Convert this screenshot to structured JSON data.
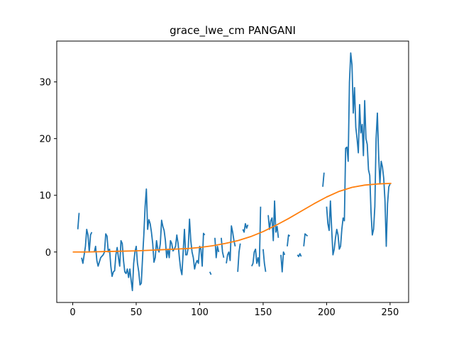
{
  "chart_data": {
    "type": "line",
    "title": "grace_lwe_cm PANGANI",
    "xlim": [
      -12.6,
      264.6
    ],
    "ylim": [
      -8.9,
      37.2
    ],
    "xticks": [
      0,
      50,
      100,
      150,
      200,
      250
    ],
    "yticks": [
      0,
      10,
      20,
      30
    ],
    "series": [
      {
        "color": "#1f77b4",
        "x": [
          4,
          5,
          6,
          7,
          8,
          10,
          11,
          12,
          13,
          14,
          15,
          16,
          17,
          18,
          19,
          20,
          22,
          24,
          25,
          26,
          27,
          28,
          29,
          30,
          31,
          32,
          33,
          34,
          35,
          36,
          37,
          38,
          39,
          40,
          41,
          42,
          43,
          44,
          45,
          46,
          47,
          48,
          49,
          50,
          51,
          52,
          53,
          54,
          55,
          56,
          57,
          58,
          59,
          60,
          61,
          62,
          63,
          64,
          65,
          66,
          67,
          68,
          69,
          70,
          71,
          72,
          73,
          74,
          75,
          76,
          77,
          78,
          79,
          80,
          81,
          82,
          83,
          84,
          85,
          86,
          87,
          88,
          89,
          90,
          91,
          92,
          93,
          94,
          95,
          96,
          97,
          98,
          99,
          100,
          101,
          102,
          103,
          104,
          106,
          108,
          109,
          110,
          112,
          113,
          114,
          115,
          116,
          117,
          118,
          119,
          120,
          121,
          122,
          123,
          124,
          125,
          126,
          127,
          128,
          129,
          130,
          131,
          132,
          133,
          134,
          135,
          136,
          137,
          138,
          139,
          141,
          142,
          143,
          144,
          145,
          146,
          147,
          148,
          149,
          150,
          151,
          152,
          153,
          154,
          155,
          156,
          157,
          158,
          159,
          160,
          161,
          162,
          163,
          164,
          165,
          166,
          167,
          168,
          169,
          170,
          171,
          176,
          177,
          178,
          179,
          180,
          181,
          182,
          183,
          184,
          185,
          190,
          197,
          198,
          199,
          200,
          201,
          202,
          203,
          204,
          205,
          206,
          207,
          208,
          209,
          210,
          211,
          212,
          213,
          214,
          215,
          216,
          217,
          218,
          219,
          220,
          221,
          222,
          223,
          224,
          225,
          226,
          227,
          228,
          229,
          230,
          231,
          232,
          233,
          234,
          235,
          236,
          237,
          238,
          239,
          240,
          241,
          242,
          243,
          244,
          245,
          246,
          247,
          248,
          249,
          250
        ],
        "values": [
          4,
          6.9,
          null,
          -1,
          -2,
          1,
          4,
          3,
          0,
          3,
          3.5,
          null,
          0,
          1,
          -1.5,
          -2.5,
          -1,
          -0.5,
          0,
          3.2,
          2.8,
          0,
          0.5,
          -2.5,
          -4.3,
          -3.5,
          -3.3,
          -0.5,
          0.8,
          -1,
          -2.5,
          2,
          1.5,
          -1.5,
          -3.5,
          -3.8,
          -3,
          -4.5,
          -3,
          -5,
          -6.8,
          -2,
          0,
          1,
          -2,
          -3.5,
          -5.8,
          -5.5,
          -1,
          3,
          8,
          11.1,
          4,
          5.7,
          5,
          3.5,
          1.5,
          -1.8,
          -1,
          2,
          0.5,
          0,
          1.5,
          5.6,
          4.5,
          3.8,
          2,
          -1,
          0.5,
          -1,
          2,
          1.5,
          0.2,
          0.5,
          1,
          3,
          1.5,
          -1,
          -3,
          -4,
          0,
          4,
          -0.5,
          -0.5,
          0.8,
          5.8,
          2,
          0,
          -1,
          -3,
          -2,
          -1.5,
          -2,
          1,
          0.5,
          -2.5,
          3.3,
          3,
          null,
          -3.5,
          -4,
          null,
          2.5,
          -1,
          1,
          0,
          null,
          2.5,
          0,
          -1,
          null,
          -2,
          -0.5,
          0,
          -1.5,
          4.6,
          3.5,
          2,
          1,
          null,
          -3.5,
          0,
          1.5,
          null,
          4,
          3.5,
          5,
          4.2,
          4.8,
          null,
          -2.5,
          -2,
          0,
          0.5,
          -2,
          -1,
          -2.5,
          8,
          null,
          0.5,
          -2,
          -3.5,
          null,
          6.5,
          4,
          5.5,
          6,
          2,
          9,
          3.5,
          4.5,
          2.5,
          null,
          -0.5,
          -3.5,
          0,
          -0.5,
          null,
          1,
          3,
          2.8,
          null,
          -0.5,
          -0.8,
          -0.3,
          -0.8,
          null,
          1,
          3.2,
          3,
          2.8,
          null,
          11.5,
          14,
          null,
          8,
          5,
          3.8,
          9,
          4,
          -0.5,
          0.5,
          2.5,
          4,
          3,
          0.5,
          1,
          4,
          6,
          5.5,
          18.3,
          18.5,
          16,
          30,
          35.1,
          33,
          24.5,
          29,
          22,
          20,
          17.5,
          26,
          21,
          22.5,
          17,
          26.7,
          20,
          19,
          14.5,
          13.5,
          7,
          3,
          4,
          8,
          20,
          24.5,
          17,
          12,
          16,
          15,
          13,
          9,
          1,
          8.5,
          11.5,
          12
        ]
      },
      {
        "color": "#ff7f0e",
        "x": [
          0,
          10,
          20,
          30,
          40,
          50,
          60,
          70,
          80,
          90,
          100,
          110,
          120,
          130,
          140,
          150,
          160,
          170,
          180,
          190,
          200,
          210,
          220,
          230,
          240,
          251
        ],
        "values": [
          0,
          0,
          0.05,
          0.1,
          0.15,
          0.2,
          0.3,
          0.4,
          0.5,
          0.6,
          0.8,
          1.1,
          1.5,
          2,
          2.7,
          3.6,
          4.7,
          5.9,
          7.2,
          8.5,
          9.7,
          10.7,
          11.4,
          11.8,
          12,
          12.1
        ]
      }
    ]
  }
}
